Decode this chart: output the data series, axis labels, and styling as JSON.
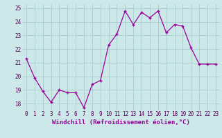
{
  "x": [
    0,
    1,
    2,
    3,
    4,
    5,
    6,
    7,
    8,
    9,
    10,
    11,
    12,
    13,
    14,
    15,
    16,
    17,
    18,
    19,
    20,
    21,
    22,
    23
  ],
  "y": [
    21.3,
    19.9,
    18.9,
    18.1,
    19.0,
    18.8,
    18.8,
    17.7,
    19.4,
    19.7,
    22.3,
    23.1,
    24.8,
    23.8,
    24.7,
    24.3,
    24.8,
    23.2,
    23.8,
    23.7,
    22.1,
    20.9,
    20.9,
    20.9
  ],
  "line_color": "#990099",
  "marker": "+",
  "bg_color": "#cce8e8",
  "grid_color": "#aacccc",
  "xlabel": "Windchill (Refroidissement éolien,°C)",
  "ylim": [
    17.5,
    25.3
  ],
  "yticks": [
    18,
    19,
    20,
    21,
    22,
    23,
    24,
    25
  ],
  "xticks": [
    0,
    1,
    2,
    3,
    4,
    5,
    6,
    7,
    8,
    9,
    10,
    11,
    12,
    13,
    14,
    15,
    16,
    17,
    18,
    19,
    20,
    21,
    22,
    23
  ],
  "tick_fontsize": 5.5,
  "xlabel_fontsize": 6.5
}
